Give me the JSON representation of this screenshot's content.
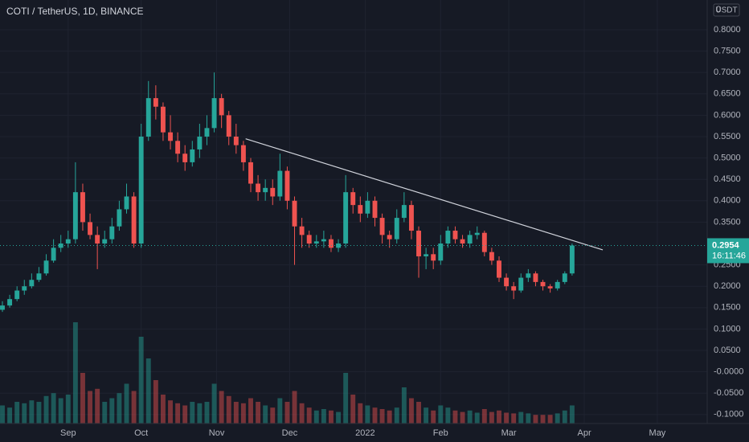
{
  "chart_data": {
    "type": "candlestick",
    "title": "COTI / TetherUS, 1D, BINANCE",
    "currency": "USDT",
    "axis_corner": "0",
    "up_color": "#26a69a",
    "down_color": "#ef5350",
    "open": [
      0.145,
      0.155,
      0.17,
      0.19,
      0.2,
      0.215,
      0.23,
      0.26,
      0.29,
      0.3,
      0.31,
      0.42,
      0.35,
      0.32,
      0.3,
      0.31,
      0.34,
      0.38,
      0.41,
      0.3,
      0.55,
      0.64,
      0.62,
      0.56,
      0.54,
      0.51,
      0.49,
      0.52,
      0.55,
      0.57,
      0.64,
      0.6,
      0.55,
      0.53,
      0.49,
      0.44,
      0.42,
      0.43,
      0.41,
      0.47,
      0.4,
      0.34,
      0.32,
      0.3,
      0.305,
      0.31,
      0.29,
      0.3,
      0.42,
      0.39,
      0.37,
      0.4,
      0.36,
      0.32,
      0.31,
      0.36,
      0.39,
      0.33,
      0.27,
      0.275,
      0.26,
      0.3,
      0.33,
      0.31,
      0.3,
      0.32,
      0.325,
      0.28,
      0.26,
      0.22,
      0.2,
      0.19,
      0.22,
      0.23,
      0.21,
      0.2,
      0.195,
      0.21,
      0.23
    ],
    "high": [
      0.165,
      0.18,
      0.2,
      0.215,
      0.23,
      0.245,
      0.275,
      0.31,
      0.32,
      0.33,
      0.49,
      0.44,
      0.37,
      0.34,
      0.33,
      0.36,
      0.4,
      0.44,
      0.42,
      0.58,
      0.68,
      0.67,
      0.63,
      0.6,
      0.56,
      0.53,
      0.54,
      0.58,
      0.6,
      0.7,
      0.65,
      0.61,
      0.58,
      0.54,
      0.5,
      0.46,
      0.45,
      0.45,
      0.51,
      0.48,
      0.41,
      0.36,
      0.33,
      0.32,
      0.33,
      0.32,
      0.31,
      0.46,
      0.43,
      0.41,
      0.42,
      0.41,
      0.37,
      0.33,
      0.38,
      0.42,
      0.4,
      0.34,
      0.29,
      0.29,
      0.32,
      0.34,
      0.34,
      0.32,
      0.33,
      0.34,
      0.33,
      0.29,
      0.27,
      0.23,
      0.21,
      0.23,
      0.24,
      0.235,
      0.215,
      0.205,
      0.215,
      0.235,
      0.3
    ],
    "low": [
      0.14,
      0.15,
      0.165,
      0.18,
      0.195,
      0.21,
      0.225,
      0.255,
      0.28,
      0.29,
      0.3,
      0.33,
      0.31,
      0.24,
      0.29,
      0.3,
      0.33,
      0.37,
      0.29,
      0.29,
      0.54,
      0.59,
      0.54,
      0.52,
      0.49,
      0.47,
      0.48,
      0.5,
      0.53,
      0.56,
      0.57,
      0.53,
      0.51,
      0.47,
      0.42,
      0.4,
      0.4,
      0.39,
      0.4,
      0.38,
      0.25,
      0.29,
      0.29,
      0.29,
      0.29,
      0.28,
      0.28,
      0.29,
      0.37,
      0.35,
      0.36,
      0.34,
      0.3,
      0.29,
      0.3,
      0.35,
      0.31,
      0.22,
      0.24,
      0.24,
      0.25,
      0.29,
      0.3,
      0.29,
      0.29,
      0.31,
      0.27,
      0.25,
      0.21,
      0.19,
      0.17,
      0.185,
      0.21,
      0.2,
      0.19,
      0.185,
      0.19,
      0.205,
      0.225
    ],
    "close": [
      0.155,
      0.17,
      0.19,
      0.2,
      0.215,
      0.23,
      0.26,
      0.29,
      0.3,
      0.31,
      0.42,
      0.35,
      0.32,
      0.3,
      0.31,
      0.34,
      0.38,
      0.41,
      0.3,
      0.55,
      0.64,
      0.62,
      0.56,
      0.54,
      0.51,
      0.49,
      0.52,
      0.55,
      0.57,
      0.64,
      0.6,
      0.55,
      0.53,
      0.49,
      0.44,
      0.42,
      0.43,
      0.41,
      0.47,
      0.4,
      0.34,
      0.32,
      0.3,
      0.305,
      0.31,
      0.29,
      0.3,
      0.42,
      0.39,
      0.37,
      0.4,
      0.36,
      0.32,
      0.31,
      0.36,
      0.39,
      0.33,
      0.27,
      0.275,
      0.26,
      0.3,
      0.33,
      0.31,
      0.3,
      0.32,
      0.325,
      0.28,
      0.26,
      0.22,
      0.2,
      0.19,
      0.22,
      0.23,
      0.21,
      0.2,
      0.195,
      0.21,
      0.23,
      0.2954
    ],
    "volume": [
      25,
      22,
      30,
      28,
      32,
      30,
      38,
      42,
      35,
      40,
      140,
      70,
      45,
      48,
      30,
      35,
      42,
      55,
      45,
      120,
      90,
      60,
      40,
      32,
      28,
      25,
      30,
      28,
      30,
      55,
      45,
      38,
      30,
      28,
      35,
      30,
      25,
      22,
      35,
      30,
      45,
      28,
      22,
      18,
      20,
      18,
      16,
      70,
      40,
      28,
      25,
      22,
      20,
      18,
      22,
      50,
      35,
      30,
      22,
      18,
      25,
      22,
      18,
      16,
      18,
      15,
      20,
      16,
      18,
      15,
      14,
      16,
      14,
      12,
      12,
      12,
      14,
      18,
      25
    ],
    "ylim": [
      -0.121,
      0.8695
    ],
    "yticks": [
      {
        "value": 0.8,
        "label": "0.8000"
      },
      {
        "value": 0.75,
        "label": "0.7500"
      },
      {
        "value": 0.7,
        "label": "0.7000"
      },
      {
        "value": 0.65,
        "label": "0.6500"
      },
      {
        "value": 0.6,
        "label": "0.6000"
      },
      {
        "value": 0.55,
        "label": "0.5500"
      },
      {
        "value": 0.5,
        "label": "0.5000"
      },
      {
        "value": 0.45,
        "label": "0.4500"
      },
      {
        "value": 0.4,
        "label": "0.4000"
      },
      {
        "value": 0.35,
        "label": "0.3500"
      },
      {
        "value": 0.25,
        "label": "0.2500"
      },
      {
        "value": 0.2,
        "label": "0.2000"
      },
      {
        "value": 0.15,
        "label": "0.1500"
      },
      {
        "value": 0.1,
        "label": "0.1000"
      },
      {
        "value": 0.05,
        "label": "0.0500"
      },
      {
        "value": 0,
        "label": "-0.0000"
      },
      {
        "value": -0.05,
        "label": "-0.0500"
      },
      {
        "value": -0.1,
        "label": "-0.1000"
      }
    ],
    "volume_lim": [
      0,
      150
    ],
    "xlim": [
      -0.33,
      96.5
    ],
    "xticks": [
      {
        "value": 9,
        "label": "Sep"
      },
      {
        "value": 19,
        "label": "Oct"
      },
      {
        "value": 29.33,
        "label": "Nov"
      },
      {
        "value": 39.33,
        "label": "Dec"
      },
      {
        "value": 49.67,
        "label": "2022"
      },
      {
        "value": 60,
        "label": "Feb"
      },
      {
        "value": 69.33,
        "label": "Mar"
      },
      {
        "value": 79.67,
        "label": "Apr"
      },
      {
        "value": 89.67,
        "label": "May"
      }
    ],
    "grid": true,
    "trendline": {
      "x": [
        33.3,
        82.2
      ],
      "y": [
        0.545,
        0.285
      ],
      "color": "#d1d4dc"
    },
    "last_price": {
      "value": 0.2954,
      "label": "0.2954",
      "countdown": "16:11:46",
      "color": "#26a69a"
    }
  }
}
